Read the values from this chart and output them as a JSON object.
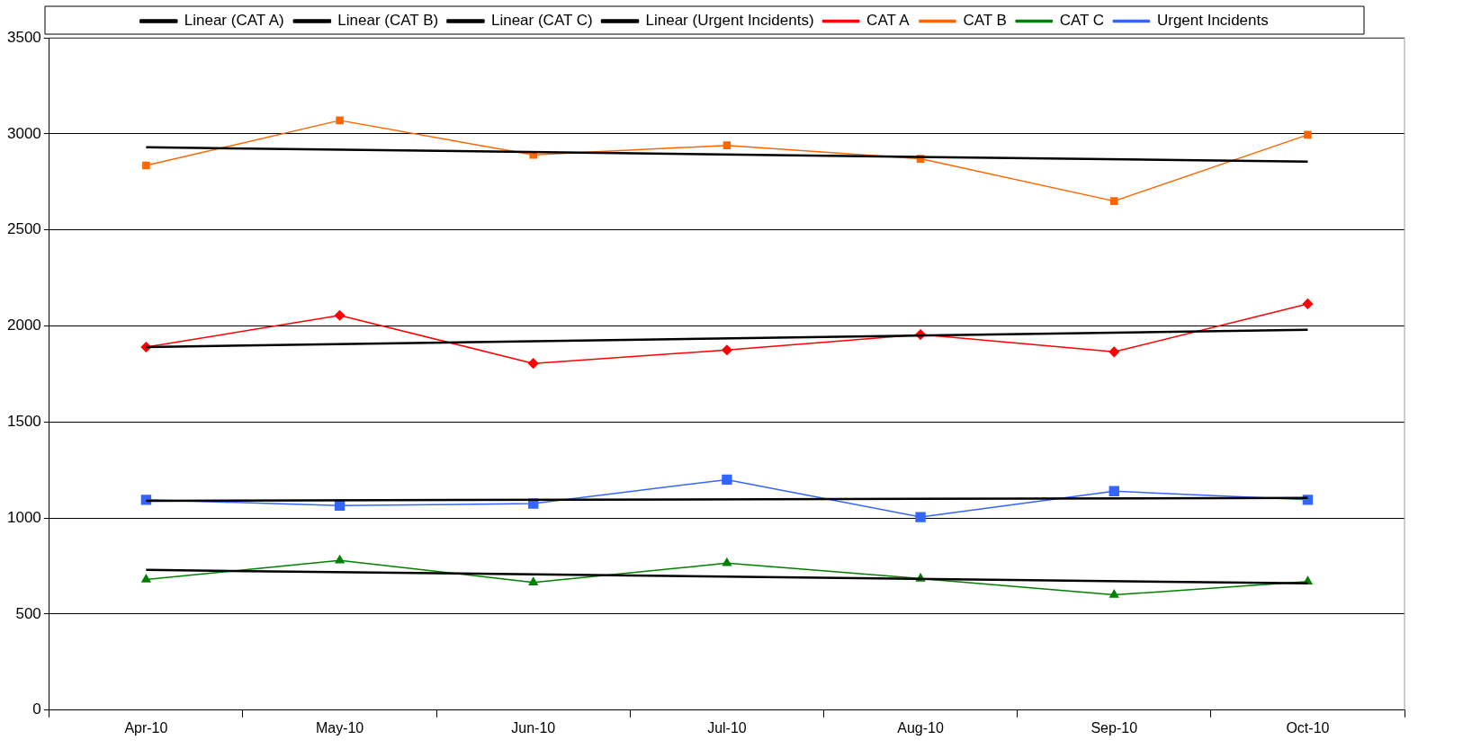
{
  "chart_data": {
    "type": "line",
    "categories": [
      "Apr-10",
      "May-10",
      "Jun-10",
      "Jul-10",
      "Aug-10",
      "Sep-10",
      "Oct-10"
    ],
    "series": [
      {
        "name": "CAT A",
        "color": "#ff0000",
        "marker": "diamond",
        "values": [
          1890,
          2055,
          1805,
          1875,
          1955,
          1865,
          2115
        ]
      },
      {
        "name": "CAT B",
        "color": "#ff6600",
        "marker": "square",
        "values": [
          2835,
          3070,
          2890,
          2940,
          2870,
          2650,
          2995
        ]
      },
      {
        "name": "CAT C",
        "color": "#008000",
        "marker": "triangle",
        "values": [
          680,
          780,
          665,
          765,
          685,
          600,
          670
        ]
      },
      {
        "name": "Urgent Incidents",
        "color": "#3366ff",
        "marker": "square",
        "values": [
          1095,
          1065,
          1075,
          1200,
          1005,
          1140,
          1095
        ]
      },
      {
        "name": "Linear (CAT A)",
        "type": "line",
        "color": "#000000",
        "marker": "none",
        "x": [
          "Apr-10",
          "Oct-10"
        ],
        "values": [
          1890,
          1980
        ]
      },
      {
        "name": "Linear (CAT B)",
        "type": "line",
        "color": "#000000",
        "marker": "none",
        "x": [
          "Apr-10",
          "Oct-10"
        ],
        "values": [
          2930,
          2855
        ]
      },
      {
        "name": "Linear (CAT C)",
        "type": "line",
        "color": "#000000",
        "marker": "none",
        "x": [
          "Apr-10",
          "Oct-10"
        ],
        "values": [
          730,
          660
        ]
      },
      {
        "name": "Linear (Urgent Incidents)",
        "type": "line",
        "color": "#000000",
        "marker": "none",
        "x": [
          "Apr-10",
          "Oct-10"
        ],
        "values": [
          1090,
          1105
        ]
      }
    ],
    "ylim": [
      0,
      3500
    ],
    "yticks": [
      0,
      500,
      1000,
      1500,
      2000,
      2500,
      3000,
      3500
    ],
    "grid": "y",
    "legend": "top"
  }
}
